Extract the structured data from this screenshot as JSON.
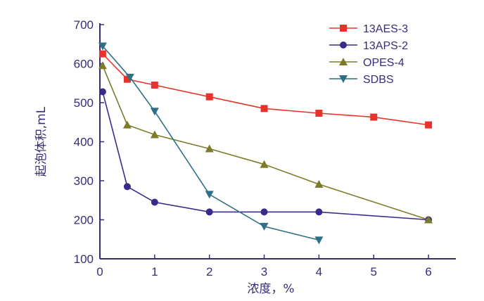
{
  "chart_data": {
    "type": "line",
    "title": "",
    "xlabel": "浓度，%",
    "ylabel": "起泡体积,mL",
    "xlim": [
      0,
      6.5
    ],
    "ylim": [
      100,
      700
    ],
    "x_ticks": [
      0,
      1,
      2,
      3,
      4,
      5,
      6
    ],
    "x_tick_labels": [
      "0",
      "1",
      "2",
      "3",
      "4",
      "5",
      "6"
    ],
    "y_ticks": [
      100,
      200,
      300,
      400,
      500,
      600,
      700
    ],
    "y_tick_labels": [
      "100",
      "200",
      "300",
      "400",
      "500",
      "600",
      "700"
    ],
    "legend_position": "top-right",
    "grid": false,
    "series": [
      {
        "name": "13AES-3",
        "color": "#e8322c",
        "marker": "square",
        "x": [
          0.05,
          0.5,
          1,
          2,
          3,
          4,
          5,
          6
        ],
        "y": [
          625,
          560,
          545,
          515,
          485,
          473,
          463,
          443
        ]
      },
      {
        "name": "13APS-2",
        "color": "#3b2a8c",
        "marker": "circle",
        "x": [
          0.05,
          0.5,
          1,
          2,
          3,
          4,
          6
        ],
        "y": [
          528,
          285,
          245,
          220,
          220,
          220,
          200
        ]
      },
      {
        "name": "OPES-4",
        "color": "#7d7a2a",
        "marker": "triangle-up",
        "x": [
          0.05,
          0.5,
          1,
          2,
          3,
          4,
          6
        ],
        "y": [
          595,
          443,
          418,
          382,
          342,
          291,
          200
        ]
      },
      {
        "name": "SDBS",
        "color": "#2f6f86",
        "marker": "triangle-down",
        "x": [
          0.05,
          0.55,
          1,
          2,
          3,
          4
        ],
        "y": [
          645,
          565,
          478,
          265,
          183,
          148
        ]
      }
    ]
  }
}
